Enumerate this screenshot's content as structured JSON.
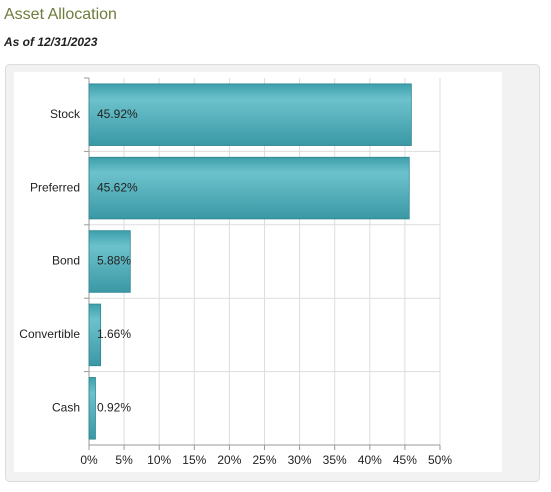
{
  "chart_data": {
    "type": "bar",
    "orientation": "horizontal",
    "title": "Asset Allocation",
    "subtitle": "As of 12/31/2023",
    "categories": [
      "Stock",
      "Preferred",
      "Bond",
      "Convertible",
      "Cash"
    ],
    "values": [
      45.92,
      45.62,
      5.88,
      1.66,
      0.92
    ],
    "value_labels": [
      "45.92%",
      "45.62%",
      "5.88%",
      "1.66%",
      "0.92%"
    ],
    "color": "#4aabb8",
    "xlim": [
      0,
      50
    ],
    "xticks": [
      {
        "value": 0,
        "label": "0%"
      },
      {
        "value": 5,
        "label": "5%"
      },
      {
        "value": 10,
        "label": "10%"
      },
      {
        "value": 15,
        "label": "15%"
      },
      {
        "value": 20,
        "label": "20%"
      },
      {
        "value": 25,
        "label": "25%"
      },
      {
        "value": 30,
        "label": "30%"
      },
      {
        "value": 35,
        "label": "35%"
      },
      {
        "value": 40,
        "label": "40%"
      },
      {
        "value": 45,
        "label": "45%"
      },
      {
        "value": 50,
        "label": "50%"
      }
    ],
    "grid": true
  }
}
